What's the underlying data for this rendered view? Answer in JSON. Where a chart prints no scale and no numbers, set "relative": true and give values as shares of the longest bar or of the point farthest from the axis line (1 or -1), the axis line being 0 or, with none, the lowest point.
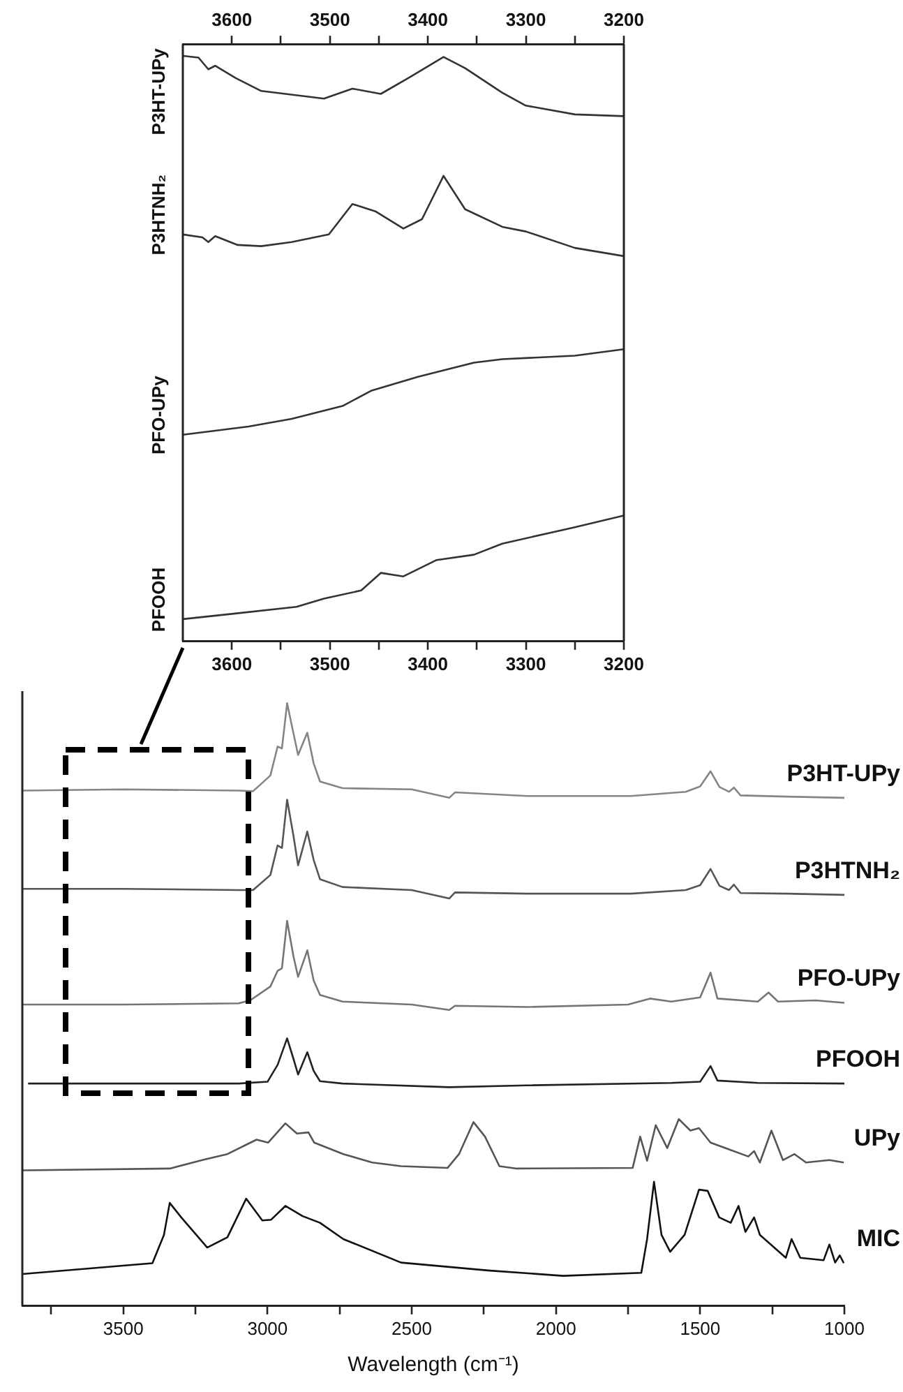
{
  "chart_data": [
    {
      "type": "line",
      "relative": true,
      "marker": "none",
      "tick_labels": "x",
      "xlim": [
        3650,
        3200
      ],
      "xticks": [
        3600,
        {
          "value": 3550,
          "label": null
        },
        3500,
        {
          "value": 3450,
          "label": null
        },
        3400,
        {
          "value": 3350,
          "label": null
        },
        3300,
        {
          "value": 3250,
          "label": null
        },
        3200
      ],
      "x2lim": [
        3650,
        3200
      ],
      "x2ticks": [
        3600,
        {
          "value": 3550,
          "label": null
        },
        3500,
        {
          "value": 3450,
          "label": null
        },
        3400,
        {
          "value": 3350,
          "label": null
        },
        3300,
        {
          "value": 3250,
          "label": null
        },
        3200
      ],
      "series": [
        {
          "name": "P3HT-UPy",
          "color": "#333333",
          "x": [
            3650,
            3634,
            3624,
            3617,
            3596,
            3570,
            3506,
            3477,
            3448,
            3420,
            3384,
            3362,
            3324,
            3300,
            3250,
            3200
          ],
          "values": [
            1.0,
            0.997,
            0.977,
            0.983,
            0.962,
            0.94,
            0.927,
            0.944,
            0.935,
            0.962,
            0.998,
            0.979,
            0.937,
            0.915,
            0.9,
            0.897
          ]
        },
        {
          "name": "P3HTNH₂",
          "color": "#333333",
          "x": [
            3650,
            3630,
            3624,
            3617,
            3594,
            3570,
            3539,
            3501,
            3477,
            3453,
            3425,
            3406,
            3384,
            3362,
            3324,
            3300,
            3250,
            3200
          ],
          "values": [
            0.695,
            0.69,
            0.682,
            0.692,
            0.677,
            0.675,
            0.682,
            0.695,
            0.747,
            0.734,
            0.705,
            0.721,
            0.795,
            0.738,
            0.708,
            0.7,
            0.672,
            0.658
          ]
        },
        {
          "name": "PFO-UPy",
          "color": "#333333",
          "x": [
            3650,
            3583,
            3539,
            3487,
            3458,
            3410,
            3353,
            3324,
            3250,
            3200
          ],
          "values": [
            0.353,
            0.367,
            0.38,
            0.402,
            0.428,
            0.452,
            0.476,
            0.482,
            0.488,
            0.499
          ]
        },
        {
          "name": "PFOOH",
          "color": "#333333",
          "x": [
            3650,
            3600,
            3534,
            3506,
            3468,
            3448,
            3425,
            3391,
            3353,
            3324,
            3250,
            3200
          ],
          "values": [
            0.038,
            0.047,
            0.059,
            0.073,
            0.087,
            0.117,
            0.111,
            0.139,
            0.148,
            0.167,
            0.195,
            0.215
          ]
        }
      ]
    },
    {
      "type": "line",
      "relative": true,
      "marker": "none",
      "tick_labels": "x",
      "xlabel": "Wavelength (cm⁻¹)",
      "xlim": [
        3850,
        1000
      ],
      "xticks": [
        {
          "value": 3750,
          "label": null
        },
        3500,
        {
          "value": 3250,
          "label": null
        },
        3000,
        {
          "value": 2750,
          "label": null
        },
        2500,
        {
          "value": 2250,
          "label": null
        },
        2000,
        {
          "value": 1750,
          "label": null
        },
        1500,
        {
          "value": 1250,
          "label": null
        },
        1000
      ],
      "series": [
        {
          "name": "P3HT-UPy",
          "color": "#858585",
          "x": [
            3850,
            3500,
            3100,
            3050,
            2990,
            2965,
            2950,
            2932,
            2910,
            2894,
            2862,
            2840,
            2818,
            2740,
            2500,
            2370,
            2350,
            2100,
            1740,
            1550,
            1500,
            1464,
            1433,
            1400,
            1383,
            1360,
            1200,
            1000
          ],
          "values": [
            0.855,
            0.857,
            0.855,
            0.854,
            0.88,
            0.928,
            0.925,
            1.0,
            0.95,
            0.914,
            0.951,
            0.9,
            0.87,
            0.859,
            0.857,
            0.843,
            0.852,
            0.846,
            0.846,
            0.853,
            0.862,
            0.887,
            0.861,
            0.853,
            0.86,
            0.847,
            0.845,
            0.843
          ]
        },
        {
          "name": "P3HTNH₂",
          "color": "#555555",
          "x": [
            3850,
            3500,
            3100,
            3050,
            2990,
            2965,
            2950,
            2932,
            2910,
            2894,
            2862,
            2840,
            2818,
            2740,
            2500,
            2370,
            2350,
            2100,
            1740,
            1550,
            1500,
            1464,
            1433,
            1400,
            1383,
            1360,
            1200,
            1000
          ],
          "values": [
            0.692,
            0.692,
            0.69,
            0.69,
            0.715,
            0.764,
            0.76,
            0.84,
            0.78,
            0.731,
            0.787,
            0.74,
            0.708,
            0.695,
            0.69,
            0.676,
            0.686,
            0.684,
            0.684,
            0.69,
            0.698,
            0.725,
            0.697,
            0.69,
            0.699,
            0.685,
            0.684,
            0.682
          ]
        },
        {
          "name": "PFO-UPy",
          "color": "#757575",
          "x": [
            3850,
            3500,
            3100,
            3060,
            2990,
            2965,
            2950,
            2932,
            2910,
            2894,
            2862,
            2840,
            2818,
            2740,
            2500,
            2370,
            2350,
            2100,
            1750,
            1674,
            1600,
            1500,
            1464,
            1440,
            1300,
            1263,
            1230,
            1100,
            1000
          ],
          "values": [
            0.5,
            0.5,
            0.502,
            0.507,
            0.53,
            0.556,
            0.56,
            0.639,
            0.58,
            0.546,
            0.59,
            0.54,
            0.516,
            0.505,
            0.5,
            0.491,
            0.498,
            0.496,
            0.5,
            0.51,
            0.505,
            0.512,
            0.553,
            0.51,
            0.505,
            0.52,
            0.505,
            0.507,
            0.503
          ]
        },
        {
          "name": "PFOOH",
          "color": "#222222",
          "x": [
            3830,
            3500,
            3100,
            3000,
            2965,
            2932,
            2910,
            2894,
            2862,
            2840,
            2818,
            2740,
            2370,
            2100,
            1600,
            1500,
            1464,
            1440,
            1300,
            1000
          ],
          "values": [
            0.369,
            0.369,
            0.369,
            0.372,
            0.4,
            0.444,
            0.41,
            0.384,
            0.421,
            0.39,
            0.373,
            0.369,
            0.363,
            0.366,
            0.37,
            0.372,
            0.398,
            0.374,
            0.37,
            0.369
          ]
        },
        {
          "name": "UPy",
          "color": "#555555",
          "x": [
            3850,
            3339,
            3219,
            3139,
            3038,
            2998,
            2938,
            2898,
            2858,
            2838,
            2737,
            2637,
            2537,
            2376,
            2336,
            2286,
            2246,
            2196,
            2136,
            1734,
            1708,
            1684,
            1654,
            1614,
            1574,
            1534,
            1504,
            1464,
            1413,
            1333,
            1313,
            1293,
            1253,
            1213,
            1173,
            1133,
            1052,
            1002
          ],
          "values": [
            0.225,
            0.228,
            0.243,
            0.252,
            0.276,
            0.271,
            0.303,
            0.286,
            0.288,
            0.271,
            0.252,
            0.238,
            0.232,
            0.229,
            0.252,
            0.305,
            0.281,
            0.232,
            0.228,
            0.229,
            0.281,
            0.241,
            0.3,
            0.262,
            0.31,
            0.291,
            0.295,
            0.271,
            0.262,
            0.248,
            0.257,
            0.238,
            0.291,
            0.242,
            0.252,
            0.238,
            0.242,
            0.238
          ]
        },
        {
          "name": "MIC",
          "color": "#111111",
          "x": [
            3850,
            3399,
            3359,
            3339,
            3299,
            3209,
            3139,
            3074,
            3018,
            2988,
            2938,
            2878,
            2818,
            2737,
            2537,
            2236,
            1975,
            1704,
            1684,
            1660,
            1634,
            1604,
            1554,
            1504,
            1474,
            1434,
            1394,
            1367,
            1343,
            1313,
            1293,
            1203,
            1183,
            1153,
            1072,
            1052,
            1032,
            1016,
            1002
          ],
          "values": [
            0.053,
            0.071,
            0.118,
            0.171,
            0.147,
            0.097,
            0.114,
            0.178,
            0.142,
            0.143,
            0.166,
            0.149,
            0.138,
            0.111,
            0.072,
            0.059,
            0.05,
            0.055,
            0.111,
            0.206,
            0.118,
            0.09,
            0.118,
            0.193,
            0.191,
            0.147,
            0.138,
            0.166,
            0.123,
            0.147,
            0.118,
            0.08,
            0.111,
            0.08,
            0.076,
            0.102,
            0.072,
            0.084,
            0.071
          ]
        }
      ]
    }
  ]
}
